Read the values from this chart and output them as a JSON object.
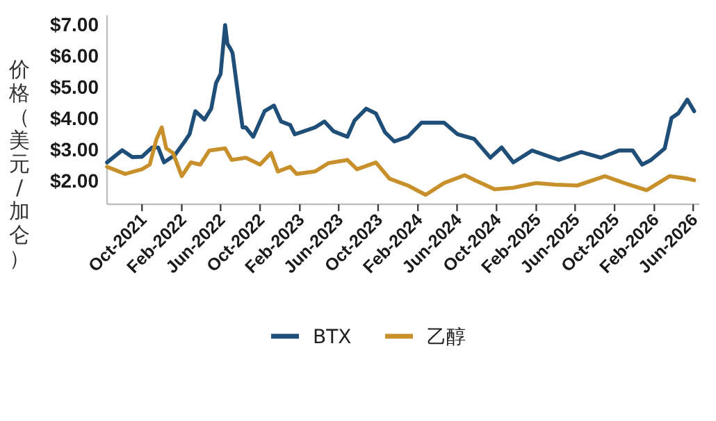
{
  "chart_data": {
    "type": "line",
    "ylabel": "价格（美元/加仑）",
    "legend": "bottom",
    "grid": false,
    "xlim": [
      "2021-06-15",
      "2026-06-20"
    ],
    "ylim": [
      1.25,
      7.3
    ],
    "yticks": [
      {
        "value": 2,
        "label": "$2.00"
      },
      {
        "value": 3,
        "label": "$3.00"
      },
      {
        "value": 4,
        "label": "$4.00"
      },
      {
        "value": 5,
        "label": "$5.00"
      },
      {
        "value": 6,
        "label": "$6.00"
      },
      {
        "value": 7,
        "label": "$7.00"
      }
    ],
    "xticks": [
      {
        "value": "2021-10-01",
        "label": "Oct-2021"
      },
      {
        "value": "2022-02-01",
        "label": "Feb-2022"
      },
      {
        "value": "2022-06-01",
        "label": "Jun-2022"
      },
      {
        "value": "2022-10-01",
        "label": "Oct-2022"
      },
      {
        "value": "2023-02-01",
        "label": "Feb-2023"
      },
      {
        "value": "2023-06-01",
        "label": "Jun-2023"
      },
      {
        "value": "2023-10-01",
        "label": "Oct-2023"
      },
      {
        "value": "2024-02-01",
        "label": "Feb-2024"
      },
      {
        "value": "2024-06-01",
        "label": "Jun-2024"
      },
      {
        "value": "2024-10-01",
        "label": "Oct-2024"
      },
      {
        "value": "2025-02-01",
        "label": "Feb-2025"
      },
      {
        "value": "2025-06-01",
        "label": "Jun-2025"
      },
      {
        "value": "2025-10-01",
        "label": "Oct-2025"
      },
      {
        "value": "2026-02-01",
        "label": "Feb-2026"
      },
      {
        "value": "2026-06-01",
        "label": "Jun-2026"
      }
    ],
    "series": [
      {
        "name": "BTX",
        "color": "#1f4e79",
        "x": [
          "2021-06-15",
          "2021-08-01",
          "2021-09-01",
          "2021-10-01",
          "2021-11-01",
          "2021-11-20",
          "2021-12-08",
          "2022-01-10",
          "2022-02-10",
          "2022-02-25",
          "2022-03-15",
          "2022-04-12",
          "2022-05-03",
          "2022-05-18",
          "2022-06-01",
          "2022-06-15",
          "2022-06-22",
          "2022-07-01",
          "2022-07-08",
          "2022-07-28",
          "2022-08-08",
          "2022-08-18",
          "2022-09-10",
          "2022-10-15",
          "2022-11-13",
          "2022-12-05",
          "2023-01-02",
          "2023-01-16",
          "2023-02-06",
          "2023-03-20",
          "2023-04-18",
          "2023-05-16",
          "2023-06-28",
          "2023-07-20",
          "2023-08-25",
          "2023-09-24",
          "2023-10-22",
          "2023-11-20",
          "2024-01-01",
          "2024-02-12",
          "2024-04-22",
          "2024-06-03",
          "2024-07-24",
          "2024-09-12",
          "2024-10-17",
          "2024-11-22",
          "2025-01-19",
          "2025-03-01",
          "2025-04-12",
          "2025-06-20",
          "2025-08-20",
          "2025-10-15",
          "2025-11-26",
          "2025-12-25",
          "2026-01-22",
          "2026-03-05",
          "2026-03-26",
          "2026-04-16",
          "2026-05-14",
          "2026-06-04"
        ],
        "values": [
          2.59,
          2.98,
          2.76,
          2.77,
          3.07,
          3.07,
          2.59,
          2.82,
          3.26,
          3.49,
          4.23,
          3.96,
          4.31,
          5.13,
          5.42,
          6.99,
          6.39,
          6.24,
          6.09,
          4.53,
          3.71,
          3.71,
          3.41,
          4.23,
          4.41,
          3.9,
          3.79,
          3.49,
          3.56,
          3.71,
          3.9,
          3.59,
          3.41,
          3.93,
          4.31,
          4.16,
          3.56,
          3.26,
          3.41,
          3.86,
          3.86,
          3.49,
          3.34,
          2.74,
          3.07,
          2.59,
          2.97,
          2.82,
          2.67,
          2.92,
          2.74,
          2.97,
          2.97,
          2.52,
          2.67,
          3.04,
          4.01,
          4.16,
          4.6,
          4.23
        ]
      },
      {
        "name": "乙醇",
        "color": "#c8902a",
        "x": [
          "2021-06-15",
          "2021-08-10",
          "2021-10-01",
          "2021-10-25",
          "2021-11-15",
          "2021-12-01",
          "2021-12-15",
          "2022-01-05",
          "2022-02-01",
          "2022-03-01",
          "2022-03-30",
          "2022-04-27",
          "2022-06-15",
          "2022-07-05",
          "2022-08-18",
          "2022-10-01",
          "2022-11-04",
          "2022-11-25",
          "2023-01-02",
          "2023-01-22",
          "2023-03-20",
          "2023-05-01",
          "2023-06-28",
          "2023-07-28",
          "2023-09-24",
          "2023-11-05",
          "2024-01-01",
          "2024-02-25",
          "2024-04-22",
          "2024-06-25",
          "2024-07-30",
          "2024-09-25",
          "2024-11-22",
          "2025-02-01",
          "2025-03-30",
          "2025-06-08",
          "2025-09-01",
          "2025-10-30",
          "2026-01-08",
          "2026-03-20",
          "2026-05-14",
          "2026-06-04"
        ],
        "values": [
          2.45,
          2.22,
          2.37,
          2.52,
          3.34,
          3.71,
          3.04,
          2.89,
          2.15,
          2.59,
          2.52,
          2.97,
          3.04,
          2.67,
          2.74,
          2.52,
          2.89,
          2.3,
          2.45,
          2.22,
          2.3,
          2.57,
          2.67,
          2.37,
          2.59,
          2.07,
          1.85,
          1.55,
          1.93,
          2.18,
          2.0,
          1.73,
          1.78,
          1.93,
          1.88,
          1.85,
          2.15,
          1.93,
          1.7,
          2.15,
          2.07,
          2.02
        ]
      }
    ]
  }
}
